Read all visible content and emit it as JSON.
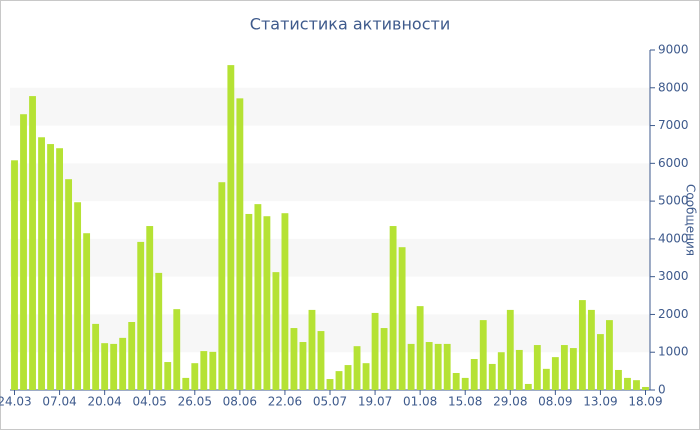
{
  "chart_data": {
    "type": "bar",
    "title": "Статистика активности",
    "y_label": "Сообщения",
    "categories": [
      "24.03",
      null,
      null,
      null,
      null,
      "07.04",
      null,
      null,
      null,
      null,
      "20.04",
      null,
      null,
      null,
      null,
      "04.05",
      null,
      null,
      null,
      null,
      "26.05",
      null,
      null,
      null,
      null,
      "08.06",
      null,
      null,
      null,
      null,
      "22.06",
      null,
      null,
      null,
      null,
      "05.07",
      null,
      null,
      null,
      null,
      "19.07",
      null,
      null,
      null,
      null,
      "01.08",
      null,
      null,
      null,
      null,
      "15.08",
      null,
      null,
      null,
      null,
      "29.08",
      null,
      null,
      null,
      null,
      "08.09",
      null,
      null,
      null,
      null,
      "13.09",
      null,
      null,
      null,
      null,
      "18.09"
    ],
    "values": [
      6080,
      7300,
      7780,
      6690,
      6510,
      6400,
      5580,
      4970,
      4150,
      1750,
      1240,
      1220,
      1380,
      1800,
      3920,
      4340,
      3100,
      740,
      2140,
      320,
      710,
      1030,
      1010,
      5500,
      8600,
      7720,
      4660,
      4920,
      4600,
      3120,
      4680,
      1640,
      1270,
      2120,
      1560,
      290,
      500,
      660,
      1160,
      710,
      2040,
      1640,
      4340,
      3780,
      1220,
      2220,
      1270,
      1220,
      1220,
      450,
      320,
      820,
      1850,
      690,
      1000,
      2120,
      1060,
      160,
      1190,
      560,
      870,
      1190,
      1110,
      2380,
      2120,
      1480,
      1850,
      530,
      320,
      260,
      80
    ],
    "color": "#b5e234",
    "ylim": [
      0,
      9000
    ],
    "yticks": [
      0,
      1000,
      2000,
      3000,
      4000,
      5000,
      6000,
      7000,
      8000,
      9000
    ],
    "y_axis_side": "right",
    "banded_grid": true
  }
}
